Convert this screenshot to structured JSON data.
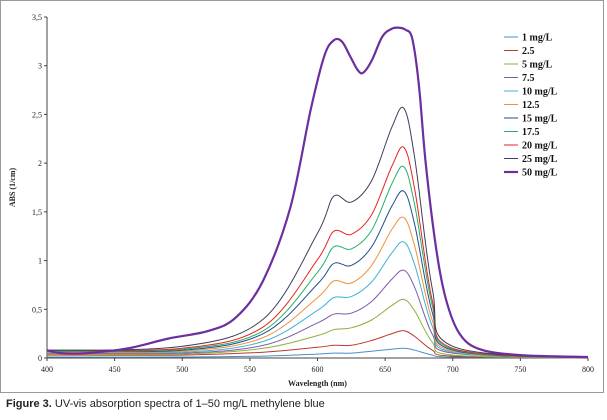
{
  "caption": {
    "label": "Figure 3.",
    "text": "UV-vis absorption spectra of 1–50 mg/L methylene blue"
  },
  "chart_data": {
    "type": "line",
    "xlabel": "Wavelength (nm)",
    "ylabel": "ABS (1/cm)",
    "xlim": [
      400,
      800
    ],
    "ylim": [
      0,
      3.5
    ],
    "x_ticks": [
      400,
      450,
      500,
      550,
      600,
      650,
      700,
      750,
      800
    ],
    "x_tick_labels": [
      "400",
      "450",
      "500",
      "550",
      "600",
      "650",
      "700",
      "750",
      "800"
    ],
    "y_ticks": [
      0,
      0.5,
      1,
      1.5,
      2,
      2.5,
      3,
      3.5
    ],
    "y_tick_labels": [
      "0",
      "0,5",
      "1",
      "1,5",
      "2",
      "2,5",
      "3",
      "3,5"
    ],
    "legend_position": "right",
    "series": [
      {
        "name": "1 mg/L",
        "color": "#4a8fc9",
        "width": 1,
        "points": [
          [
            400,
            0.01
          ],
          [
            500,
            0.01
          ],
          [
            560,
            0.02
          ],
          [
            600,
            0.04
          ],
          [
            612,
            0.05
          ],
          [
            625,
            0.05
          ],
          [
            640,
            0.07
          ],
          [
            655,
            0.09
          ],
          [
            664,
            0.1
          ],
          [
            672,
            0.08
          ],
          [
            685,
            0.03
          ],
          [
            700,
            0.01
          ],
          [
            800,
            0.0
          ]
        ]
      },
      {
        "name": "2.5",
        "color": "#c0392b",
        "width": 1,
        "points": [
          [
            400,
            0.03
          ],
          [
            500,
            0.03
          ],
          [
            560,
            0.06
          ],
          [
            600,
            0.11
          ],
          [
            612,
            0.13
          ],
          [
            625,
            0.13
          ],
          [
            640,
            0.18
          ],
          [
            655,
            0.25
          ],
          [
            664,
            0.28
          ],
          [
            672,
            0.22
          ],
          [
            685,
            0.08
          ],
          [
            700,
            0.02
          ],
          [
            800,
            0.0
          ]
        ]
      },
      {
        "name": "5 mg/L",
        "color": "#8db03a",
        "width": 1,
        "points": [
          [
            400,
            0.04
          ],
          [
            500,
            0.04
          ],
          [
            560,
            0.1
          ],
          [
            600,
            0.23
          ],
          [
            612,
            0.29
          ],
          [
            625,
            0.31
          ],
          [
            640,
            0.39
          ],
          [
            655,
            0.54
          ],
          [
            664,
            0.6
          ],
          [
            672,
            0.48
          ],
          [
            685,
            0.16
          ],
          [
            700,
            0.03
          ],
          [
            800,
            0.0
          ]
        ]
      },
      {
        "name": "7.5",
        "color": "#7e5aa8",
        "width": 1,
        "points": [
          [
            400,
            0.05
          ],
          [
            500,
            0.05
          ],
          [
            560,
            0.13
          ],
          [
            600,
            0.36
          ],
          [
            612,
            0.45
          ],
          [
            625,
            0.46
          ],
          [
            640,
            0.58
          ],
          [
            655,
            0.81
          ],
          [
            664,
            0.9
          ],
          [
            672,
            0.72
          ],
          [
            685,
            0.24
          ],
          [
            700,
            0.05
          ],
          [
            800,
            0.0
          ]
        ]
      },
      {
        "name": "10 mg/L",
        "color": "#3fb2d4",
        "width": 1,
        "points": [
          [
            400,
            0.06
          ],
          [
            500,
            0.06
          ],
          [
            560,
            0.17
          ],
          [
            600,
            0.49
          ],
          [
            612,
            0.62
          ],
          [
            625,
            0.63
          ],
          [
            640,
            0.78
          ],
          [
            655,
            1.08
          ],
          [
            664,
            1.19
          ],
          [
            672,
            0.95
          ],
          [
            685,
            0.32
          ],
          [
            700,
            0.06
          ],
          [
            800,
            0.0
          ]
        ]
      },
      {
        "name": "12.5",
        "color": "#f0923a",
        "width": 1,
        "points": [
          [
            400,
            0.06
          ],
          [
            500,
            0.07
          ],
          [
            560,
            0.21
          ],
          [
            600,
            0.62
          ],
          [
            612,
            0.79
          ],
          [
            625,
            0.77
          ],
          [
            640,
            0.95
          ],
          [
            655,
            1.32
          ],
          [
            664,
            1.44
          ],
          [
            672,
            1.14
          ],
          [
            685,
            0.38
          ],
          [
            700,
            0.07
          ],
          [
            800,
            0.0
          ]
        ]
      },
      {
        "name": "15 mg/L",
        "color": "#1f4e8c",
        "width": 1,
        "points": [
          [
            400,
            0.07
          ],
          [
            500,
            0.08
          ],
          [
            560,
            0.25
          ],
          [
            600,
            0.76
          ],
          [
            612,
            0.97
          ],
          [
            625,
            0.95
          ],
          [
            640,
            1.14
          ],
          [
            655,
            1.56
          ],
          [
            664,
            1.71
          ],
          [
            672,
            1.36
          ],
          [
            685,
            0.46
          ],
          [
            700,
            0.08
          ],
          [
            800,
            0.0
          ]
        ]
      },
      {
        "name": "17.5",
        "color": "#22b06a",
        "width": 1,
        "points": [
          [
            400,
            0.07
          ],
          [
            500,
            0.09
          ],
          [
            560,
            0.28
          ],
          [
            600,
            0.88
          ],
          [
            612,
            1.14
          ],
          [
            625,
            1.12
          ],
          [
            640,
            1.31
          ],
          [
            655,
            1.79
          ],
          [
            664,
            1.96
          ],
          [
            672,
            1.56
          ],
          [
            685,
            0.53
          ],
          [
            700,
            0.09
          ],
          [
            800,
            0.0
          ]
        ]
      },
      {
        "name": "20 mg/L",
        "color": "#e8231d",
        "width": 1,
        "points": [
          [
            400,
            0.08
          ],
          [
            500,
            0.1
          ],
          [
            560,
            0.32
          ],
          [
            600,
            1.01
          ],
          [
            612,
            1.3
          ],
          [
            625,
            1.27
          ],
          [
            640,
            1.47
          ],
          [
            655,
            1.97
          ],
          [
            664,
            2.16
          ],
          [
            672,
            1.72
          ],
          [
            685,
            0.58
          ],
          [
            700,
            0.1
          ],
          [
            800,
            0.0
          ]
        ]
      },
      {
        "name": "25 mg/L",
        "color": "#3d3d5c",
        "width": 1,
        "points": [
          [
            400,
            0.08
          ],
          [
            500,
            0.12
          ],
          [
            560,
            0.4
          ],
          [
            600,
            1.28
          ],
          [
            612,
            1.66
          ],
          [
            625,
            1.6
          ],
          [
            640,
            1.82
          ],
          [
            655,
            2.37
          ],
          [
            664,
            2.56
          ],
          [
            672,
            2.04
          ],
          [
            685,
            0.7
          ],
          [
            700,
            0.12
          ],
          [
            800,
            0.0
          ]
        ]
      },
      {
        "name": "50 mg/L",
        "color": "#6b2fa0",
        "width": 2.2,
        "points": [
          [
            400,
            0.08
          ],
          [
            410,
            0.05
          ],
          [
            430,
            0.05
          ],
          [
            460,
            0.1
          ],
          [
            490,
            0.2
          ],
          [
            520,
            0.28
          ],
          [
            540,
            0.42
          ],
          [
            560,
            0.8
          ],
          [
            580,
            1.55
          ],
          [
            595,
            2.55
          ],
          [
            605,
            3.1
          ],
          [
            612,
            3.26
          ],
          [
            618,
            3.25
          ],
          [
            624,
            3.1
          ],
          [
            630,
            2.95
          ],
          [
            634,
            2.93
          ],
          [
            640,
            3.05
          ],
          [
            648,
            3.3
          ],
          [
            655,
            3.38
          ],
          [
            660,
            3.39
          ],
          [
            665,
            3.37
          ],
          [
            670,
            3.28
          ],
          [
            675,
            2.8
          ],
          [
            680,
            2.0
          ],
          [
            688,
            1.1
          ],
          [
            695,
            0.6
          ],
          [
            705,
            0.25
          ],
          [
            720,
            0.09
          ],
          [
            750,
            0.03
          ],
          [
            800,
            0.01
          ]
        ]
      }
    ]
  }
}
